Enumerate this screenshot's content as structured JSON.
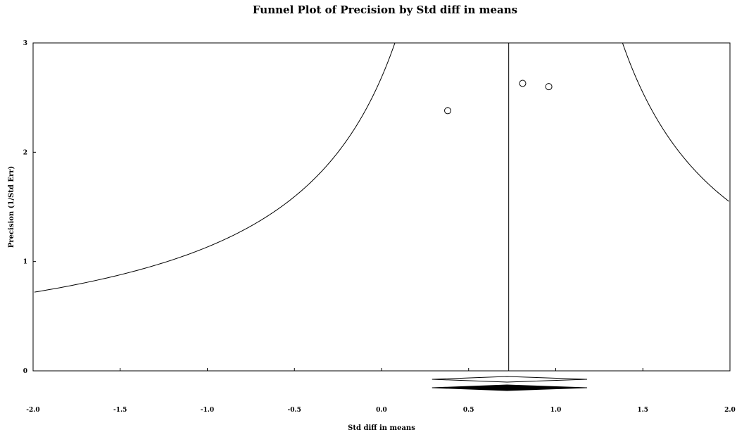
{
  "chart_data": {
    "type": "scatter",
    "title": "Funnel Plot of Precision by Std diff in means",
    "xlabel": "Std diff in means",
    "ylabel": "Precision (1/Std Err)",
    "xlim": [
      -2.0,
      2.0
    ],
    "ylim": [
      0,
      3
    ],
    "x_ticks": [
      "-2.0",
      "-1.5",
      "-1.0",
      "-0.5",
      "0.0",
      "0.5",
      "1.0",
      "1.5",
      "2.0"
    ],
    "y_ticks": [
      "0",
      "1",
      "2",
      "3"
    ],
    "grid": false,
    "studies": [
      {
        "x": 0.38,
        "y": 2.38
      },
      {
        "x": 0.81,
        "y": 2.63
      },
      {
        "x": 0.96,
        "y": 2.6
      }
    ],
    "summary_effect": 0.73,
    "funnel_z": 1.96,
    "summary_diamonds": [
      {
        "center": 0.72,
        "low": 0.29,
        "high": 1.18,
        "filled": false
      },
      {
        "center": 0.72,
        "low": 0.29,
        "high": 1.18,
        "filled": true
      }
    ]
  }
}
